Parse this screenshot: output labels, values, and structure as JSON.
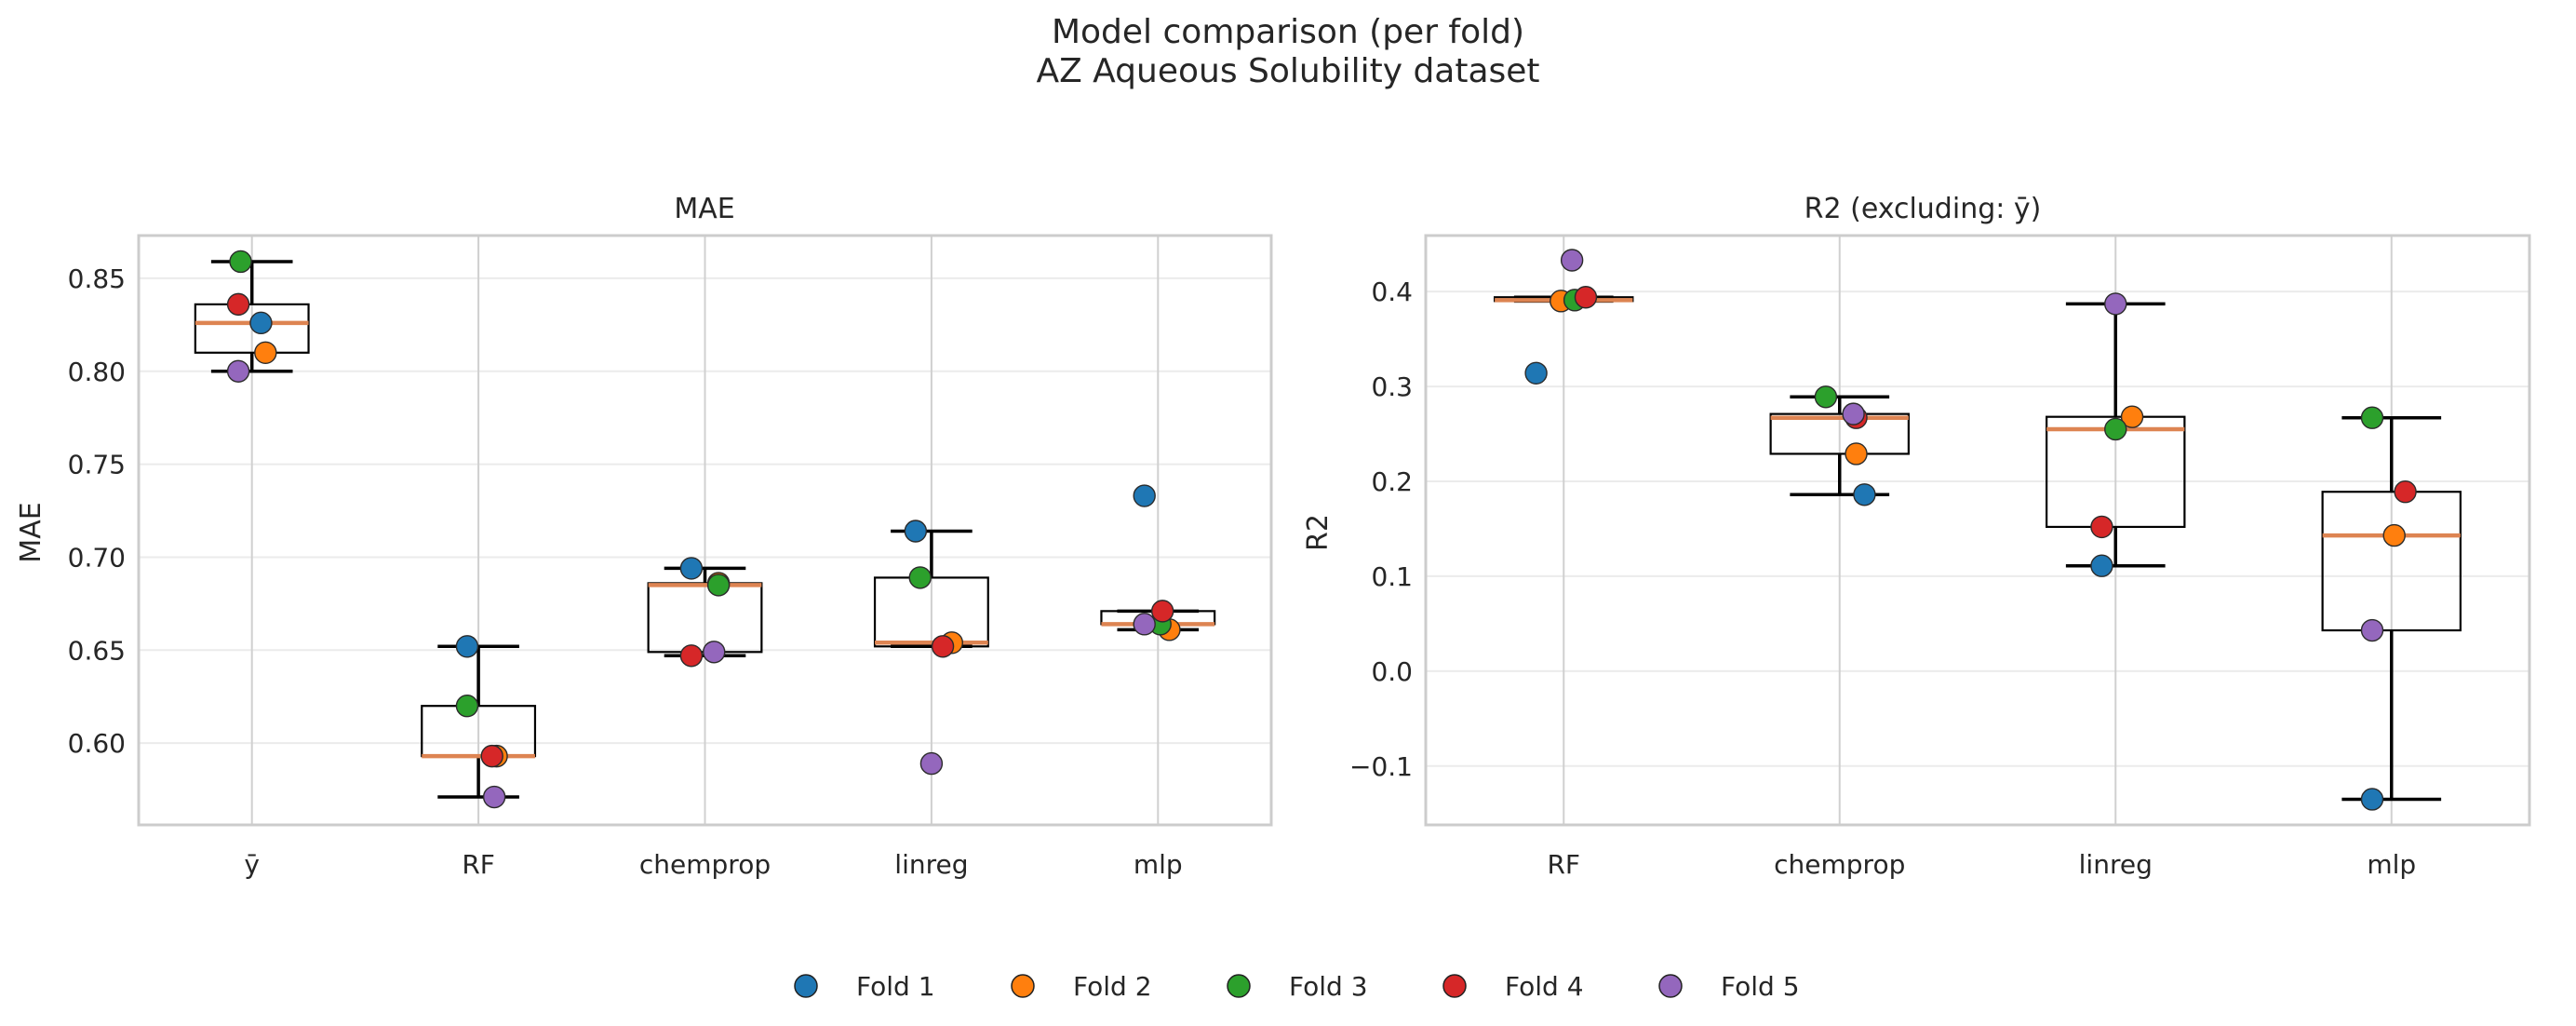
{
  "figure": {
    "title_line1": "Model comparison (per fold)",
    "title_line2": "AZ Aqueous Solubility dataset"
  },
  "colors": {
    "fold_1": "#1f77b4",
    "fold_2": "#ff7f0e",
    "fold_3": "#2ca02c",
    "fold_4": "#d62728",
    "fold_5": "#9467bd",
    "median": "#dd8452",
    "box": "#000000",
    "frame": "#cccccc",
    "grid_vertical": "#d0d0d0",
    "grid_horizontal": "#ebebeb",
    "text": "#262626"
  },
  "legend": {
    "items": [
      "Fold 1",
      "Fold 2",
      "Fold 3",
      "Fold 4",
      "Fold 5"
    ],
    "placement": "bottom-center"
  },
  "chart_data": [
    {
      "type": "box",
      "title": "MAE",
      "ylabel": "MAE",
      "xlabel": "",
      "ylim": [
        0.556,
        0.873
      ],
      "yticks": [
        0.6,
        0.65,
        0.7,
        0.75,
        0.8,
        0.85
      ],
      "ytick_labels": [
        "0.60",
        "0.65",
        "0.70",
        "0.75",
        "0.80",
        "0.85"
      ],
      "categories": [
        "ȳ",
        "RF",
        "chemprop",
        "linreg",
        "mlp"
      ],
      "series": [
        {
          "name": "Fold 1",
          "values": [
            0.826,
            0.652,
            0.694,
            0.714,
            0.733
          ]
        },
        {
          "name": "Fold 2",
          "values": [
            0.81,
            0.593,
            0.686,
            0.654,
            0.661
          ]
        },
        {
          "name": "Fold 3",
          "values": [
            0.859,
            0.62,
            0.685,
            0.689,
            0.664
          ]
        },
        {
          "name": "Fold 4",
          "values": [
            0.836,
            0.593,
            0.647,
            0.652,
            0.671
          ]
        },
        {
          "name": "Fold 5",
          "values": [
            0.8,
            0.571,
            0.649,
            0.589,
            0.664
          ]
        }
      ],
      "jitter": [
        [
          0.04,
          -0.05,
          -0.06,
          -0.07,
          -0.06
        ],
        [
          0.06,
          0.08,
          0.06,
          0.09,
          0.05
        ],
        [
          -0.05,
          -0.05,
          0.06,
          -0.05,
          0.01
        ],
        [
          -0.06,
          0.06,
          -0.06,
          0.05,
          0.02
        ],
        [
          -0.06,
          0.07,
          0.04,
          0.0,
          -0.06
        ]
      ]
    },
    {
      "type": "box",
      "title": "R2 (excluding: ȳ)",
      "ylabel": "R2",
      "xlabel": "",
      "ylim": [
        -0.162,
        0.459
      ],
      "yticks": [
        -0.1,
        0.0,
        0.1,
        0.2,
        0.3,
        0.4
      ],
      "ytick_labels": [
        "−0.1",
        "0.0",
        "0.1",
        "0.2",
        "0.3",
        "0.4"
      ],
      "categories": [
        "RF",
        "chemprop",
        "linreg",
        "mlp"
      ],
      "series": [
        {
          "name": "Fold 1",
          "values": [
            0.314,
            0.186,
            0.111,
            -0.135
          ]
        },
        {
          "name": "Fold 2",
          "values": [
            0.39,
            0.229,
            0.268,
            0.143
          ]
        },
        {
          "name": "Fold 3",
          "values": [
            0.391,
            0.289,
            0.255,
            0.267
          ]
        },
        {
          "name": "Fold 4",
          "values": [
            0.394,
            0.267,
            0.152,
            0.189
          ]
        },
        {
          "name": "Fold 5",
          "values": [
            0.433,
            0.271,
            0.387,
            0.043
          ]
        }
      ],
      "jitter": [
        [
          -0.1,
          0.09,
          -0.05,
          -0.07
        ],
        [
          -0.01,
          0.06,
          0.06,
          0.01
        ],
        [
          0.04,
          -0.05,
          0.0,
          -0.07
        ],
        [
          0.08,
          0.06,
          -0.05,
          0.05
        ],
        [
          0.03,
          0.05,
          0.0,
          -0.07
        ]
      ]
    }
  ]
}
